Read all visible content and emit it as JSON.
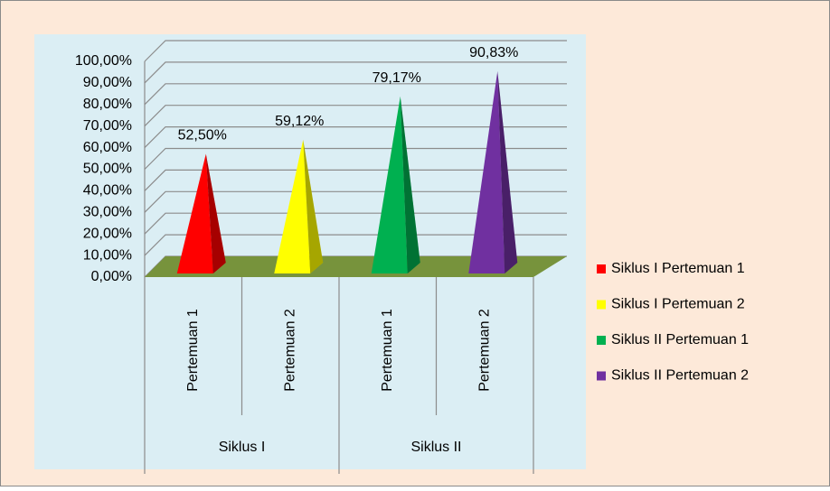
{
  "chart_data": {
    "type": "pyramid",
    "categories": [
      "Pertemuan 1",
      "Pertemuan 2",
      "Pertemuan 1",
      "Pertemuan 2"
    ],
    "groups": [
      "Siklus I",
      "Siklus II"
    ],
    "series": [
      {
        "name": "Siklus I Pertemuan 1",
        "color": "#ff0000",
        "values": [
          52.5,
          null,
          null,
          null
        ],
        "value_labels": [
          "52,50%",
          null,
          null,
          null
        ]
      },
      {
        "name": "Siklus I Pertemuan 2",
        "color": "#ffff00",
        "values": [
          null,
          59.12,
          null,
          null
        ],
        "value_labels": [
          null,
          "59,12%",
          null,
          null
        ]
      },
      {
        "name": "Siklus II Pertemuan 1",
        "color": "#00b050",
        "values": [
          null,
          null,
          79.17,
          null
        ],
        "value_labels": [
          null,
          null,
          "79,17%",
          null
        ]
      },
      {
        "name": "Siklus II Pertemuan 2",
        "color": "#7030a0",
        "values": [
          null,
          null,
          null,
          90.83
        ],
        "value_labels": [
          null,
          null,
          null,
          "90,83%"
        ]
      }
    ],
    "ylim": [
      0,
      100
    ],
    "yticks": [
      {
        "value": 0,
        "label": "0,00%"
      },
      {
        "value": 10,
        "label": "10,00%"
      },
      {
        "value": 20,
        "label": "20,00%"
      },
      {
        "value": 30,
        "label": "30,00%"
      },
      {
        "value": 40,
        "label": "40,00%"
      },
      {
        "value": 50,
        "label": "50,00%"
      },
      {
        "value": 60,
        "label": "60,00%"
      },
      {
        "value": 70,
        "label": "70,00%"
      },
      {
        "value": 80,
        "label": "80,00%"
      },
      {
        "value": 90,
        "label": "90,00%"
      },
      {
        "value": 100,
        "label": "100,00%"
      }
    ],
    "grid": true,
    "legend": "right"
  }
}
